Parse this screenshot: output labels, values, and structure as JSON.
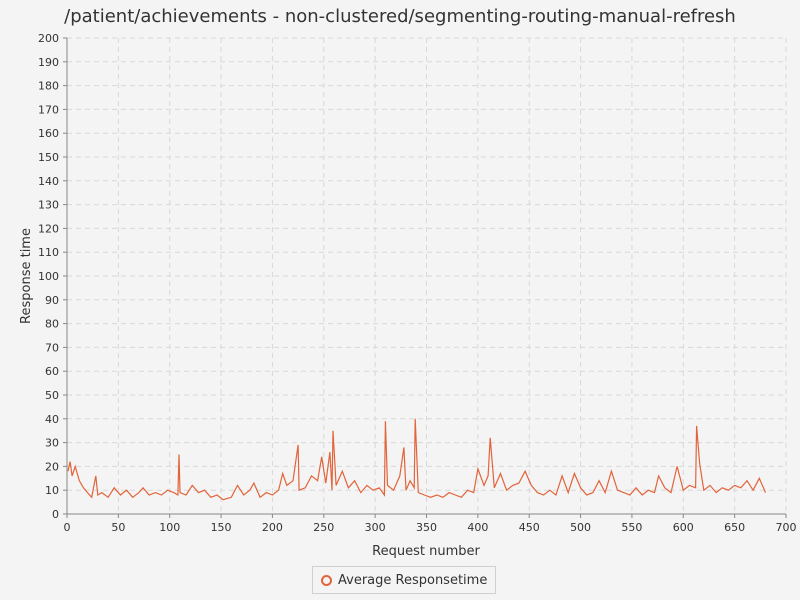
{
  "chart_data": {
    "type": "line",
    "title": "/patient/achievements - non-clustered/segmenting-routing-manual-refresh",
    "xlabel": "Request number",
    "ylabel": "Response time",
    "xlim": [
      0,
      700
    ],
    "ylim": [
      0,
      200
    ],
    "x_ticks": [
      0,
      50,
      100,
      150,
      200,
      250,
      300,
      350,
      400,
      450,
      500,
      550,
      600,
      650,
      700
    ],
    "y_ticks": [
      0,
      10,
      20,
      30,
      40,
      50,
      60,
      70,
      80,
      90,
      100,
      110,
      120,
      130,
      140,
      150,
      160,
      170,
      180,
      190,
      200
    ],
    "grid": true,
    "legend_position": "bottom-center",
    "series_color": "#e2643b",
    "series": [
      {
        "name": "Average Responsetime",
        "x": [
          1,
          3,
          5,
          8,
          12,
          16,
          20,
          24,
          28,
          30,
          34,
          40,
          46,
          52,
          58,
          64,
          70,
          74,
          80,
          86,
          92,
          98,
          104,
          108,
          109,
          110,
          116,
          122,
          128,
          134,
          140,
          146,
          152,
          160,
          166,
          172,
          178,
          182,
          188,
          194,
          200,
          206,
          210,
          214,
          220,
          225,
          226,
          232,
          238,
          244,
          248,
          252,
          256,
          258,
          259,
          262,
          268,
          274,
          280,
          286,
          292,
          298,
          304,
          309,
          310,
          312,
          318,
          324,
          328,
          330,
          334,
          338,
          339,
          342,
          348,
          354,
          360,
          366,
          372,
          378,
          384,
          390,
          396,
          400,
          406,
          410,
          412,
          416,
          422,
          428,
          434,
          440,
          446,
          452,
          458,
          464,
          470,
          476,
          482,
          488,
          494,
          500,
          506,
          512,
          518,
          524,
          530,
          536,
          542,
          548,
          554,
          560,
          566,
          572,
          576,
          582,
          588,
          594,
          600,
          606,
          612,
          613,
          616,
          620,
          626,
          632,
          638,
          644,
          650,
          656,
          662,
          668,
          674,
          680
        ],
        "values": [
          18,
          22,
          16,
          20,
          14,
          11,
          9,
          7,
          16,
          8,
          9,
          7,
          11,
          8,
          10,
          7,
          9,
          11,
          8,
          9,
          8,
          10,
          9,
          8,
          25,
          9,
          8,
          12,
          9,
          10,
          7,
          8,
          6,
          7,
          12,
          8,
          10,
          13,
          7,
          9,
          8,
          10,
          17,
          12,
          14,
          29,
          10,
          11,
          16,
          14,
          24,
          13,
          26,
          10,
          35,
          12,
          18,
          11,
          14,
          9,
          12,
          10,
          11,
          8,
          39,
          12,
          10,
          16,
          28,
          10,
          14,
          11,
          40,
          9,
          8,
          7,
          8,
          7,
          9,
          8,
          7,
          10,
          9,
          19,
          12,
          16,
          32,
          11,
          17,
          10,
          12,
          13,
          18,
          12,
          9,
          8,
          10,
          8,
          16,
          9,
          17,
          11,
          8,
          9,
          14,
          9,
          18,
          10,
          9,
          8,
          11,
          8,
          10,
          9,
          16,
          11,
          9,
          20,
          10,
          12,
          11,
          37,
          21,
          10,
          12,
          9,
          11,
          10,
          12,
          11,
          14,
          10,
          15,
          9
        ]
      }
    ]
  }
}
